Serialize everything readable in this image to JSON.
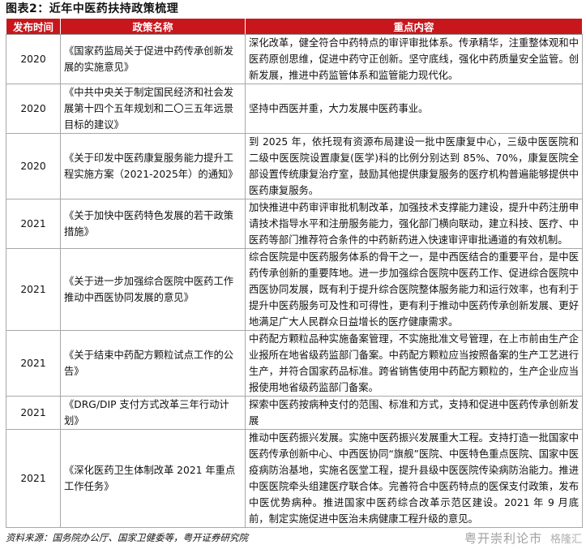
{
  "title": "图表2：近年中医药扶持政策梳理",
  "headers": [
    "发布时间",
    "政策名称",
    "重点内容"
  ],
  "rows": [
    {
      "year": "2020",
      "name": "《国家药监局关于促进中药传承创新发展的实施意见》",
      "content": "深化改革，健全符合中药特点的审评审批体系。传承精华，注重整体观和中医药原创思维，促进中药守正创新。坚守底线，强化中药质量安全监管。创新发展，推进中药监管体系和监管能力现代化。"
    },
    {
      "year": "2020",
      "name": "《中共中央关于制定国民经济和社会发展第十四个五年规划和二〇三五年远景目标的建议》",
      "content": "坚持中西医并重，大力发展中医药事业。"
    },
    {
      "year": "2020",
      "name": "《关于印发中医药康复服务能力提升工程实施方案（2021-2025年）的通知》",
      "content": "到 2025 年，依托现有资源布局建设一批中医康复中心，三级中医医院和二级中医医院设置康复(医学)科的比例分别达到 85%、70%，康复医院全部设置传统康复治疗室，鼓励其他提供康复服务的医疗机构普遍能够提供中医药康复服务。"
    },
    {
      "year": "2021",
      "name": "《关于加快中医药特色发展的若干政策措施》",
      "content": "加快推进中药审评审批机制改革，加强技术支撑能力建设，提升中药注册申请技术指导水平和注册服务能力，强化部门横向联动，建立科技、医疗、中医药等部门推荐符合条件的中药新药进入快速审评审批通道的有效机制。"
    },
    {
      "year": "2021",
      "name": "《关于进一步加强综合医院中医药工作推动中西医协同发展的意见》",
      "content": "综合医院是中医药服务体系的骨干之一，是中西医结合的重要平台，是中医药传承创新的重要阵地。进一步加强综合医院中医药工作、促进综合医院中西医协同发展，既有利于提升综合医院整体服务能力和运行效率，也有利于提升中医药服务可及性和可得性，更有利于推动中医药传承创新发展、更好地满足广大人民群众日益增长的医疗健康需求。"
    },
    {
      "year": "2021",
      "name": "《关于结束中药配方颗粒试点工作的公告》",
      "content": "中药配方颗粒品种实施备案管理，不实施批准文号管理，在上市前由生产企业报所在地省级药监部门备案。中药配方颗粒应当按照备案的生产工艺进行生产，并符合国家药品标准。跨省销售使用中药配方颗粒的，生产企业应当报使用地省级药监部门备案。"
    },
    {
      "year": "2021",
      "name": "《DRG/DIP 支付方式改革三年行动计划》",
      "content": "探索中医药按病种支付的范围、标准和方式，支持和促进中医药传承创新发展"
    },
    {
      "year": "2021",
      "name": "《深化医药卫生体制改革 2021 年重点工作任务》",
      "content": "推动中医药振兴发展。实施中医药振兴发展重大工程。支持打造一批国家中医药传承创新中心、中西医协同“旗舰”医院、中医特色重点医院、国家中医疫病防治基地，实施名医堂工程，提升县级中医医院传染病防治能力。推进中医医院牵头组建医疗联合体。完善符合中医药特点的医保支付政策，发布中医优势病种。推进国家中医药综合改革示范区建设。2021 年 9 月底前，制定实施促进中医治未病健康工程升级的意见。"
    }
  ],
  "source": "资料来源：国务院办公厅、国家卫健委等，粤开证券研究院",
  "watermark": "粤开崇利论市",
  "watermark2": "格隆汇",
  "colors": {
    "header_bg": "#c8161d",
    "header_text": "#ffffff",
    "border": "#a8a8a8"
  }
}
